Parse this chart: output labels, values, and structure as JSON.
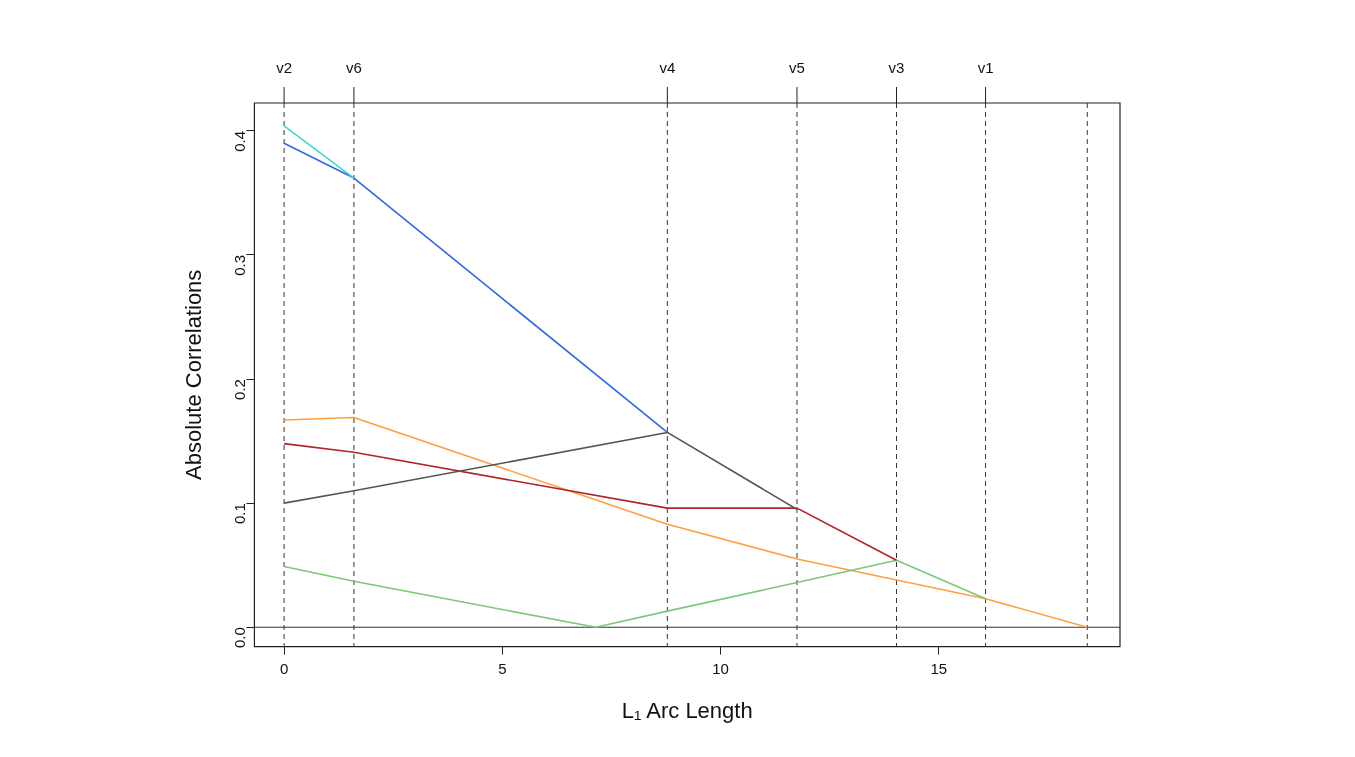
{
  "chart_data": {
    "type": "line",
    "xlabel": "L₁ Arc Length",
    "ylabel": "Absolute Correlations",
    "xlim": [
      -0.68,
      19.15
    ],
    "ylim": [
      -0.0156,
      0.4225
    ],
    "xticks": [
      0,
      5,
      10,
      15
    ],
    "yticks": [
      {
        "value": 0,
        "label": "0.0"
      },
      0.1,
      0.2,
      0.3,
      0.4
    ],
    "x": [
      0,
      1.6,
      8.78,
      11.75,
      14.03,
      16.07,
      18.4
    ],
    "series": [
      {
        "color": "#40d8cc",
        "values": [
          0.404,
          0.362,
          null,
          null,
          null,
          null,
          null
        ]
      },
      {
        "color": "#3068e6",
        "values": [
          0.39,
          0.362,
          0.157,
          null,
          null,
          null,
          null
        ]
      },
      {
        "color": "#555555",
        "values": [
          0.1,
          0.11,
          0.157,
          0.095,
          null,
          null,
          null
        ]
      },
      {
        "color": "#b22428",
        "values": [
          0.148,
          0.141,
          0.096,
          0.096,
          0.054,
          null,
          null
        ]
      },
      {
        "color": "#7cc878",
        "x": [
          0,
          1.6,
          7.14,
          8.78,
          11.75,
          14.03,
          16.07
        ],
        "values": [
          0.049,
          0.037,
          0,
          0.013,
          0.036,
          0.054,
          0.023
        ]
      },
      {
        "color": "#ffa040",
        "values": [
          0.167,
          0.169,
          0.083,
          0.055,
          0.038,
          0.023,
          0
        ]
      }
    ],
    "ref_lines": [
      {
        "axis": "x",
        "value": 0,
        "label": "v2",
        "line_style": "dashed",
        "color": "#333333"
      },
      {
        "axis": "x",
        "value": 1.6,
        "label": "v6",
        "line_style": "dashed",
        "color": "#333333"
      },
      {
        "axis": "x",
        "value": 8.78,
        "label": "v4",
        "line_style": "dashed",
        "color": "#333333"
      },
      {
        "axis": "x",
        "value": 11.75,
        "label": "v5",
        "line_style": "dashed",
        "color": "#333333"
      },
      {
        "axis": "x",
        "value": 14.03,
        "label": "v3",
        "line_style": "dashed",
        "color": "#333333"
      },
      {
        "axis": "x",
        "value": 16.07,
        "label": "v1",
        "line_style": "dashed",
        "color": "#333333"
      },
      {
        "axis": "x",
        "value": 18.4,
        "line_style": "dashed",
        "color": "#333333"
      },
      {
        "axis": "y",
        "value": 0,
        "line_style": "solid",
        "color": "#333333"
      }
    ],
    "grid": false,
    "legend": false,
    "marker": "none",
    "line_style": "solid"
  }
}
